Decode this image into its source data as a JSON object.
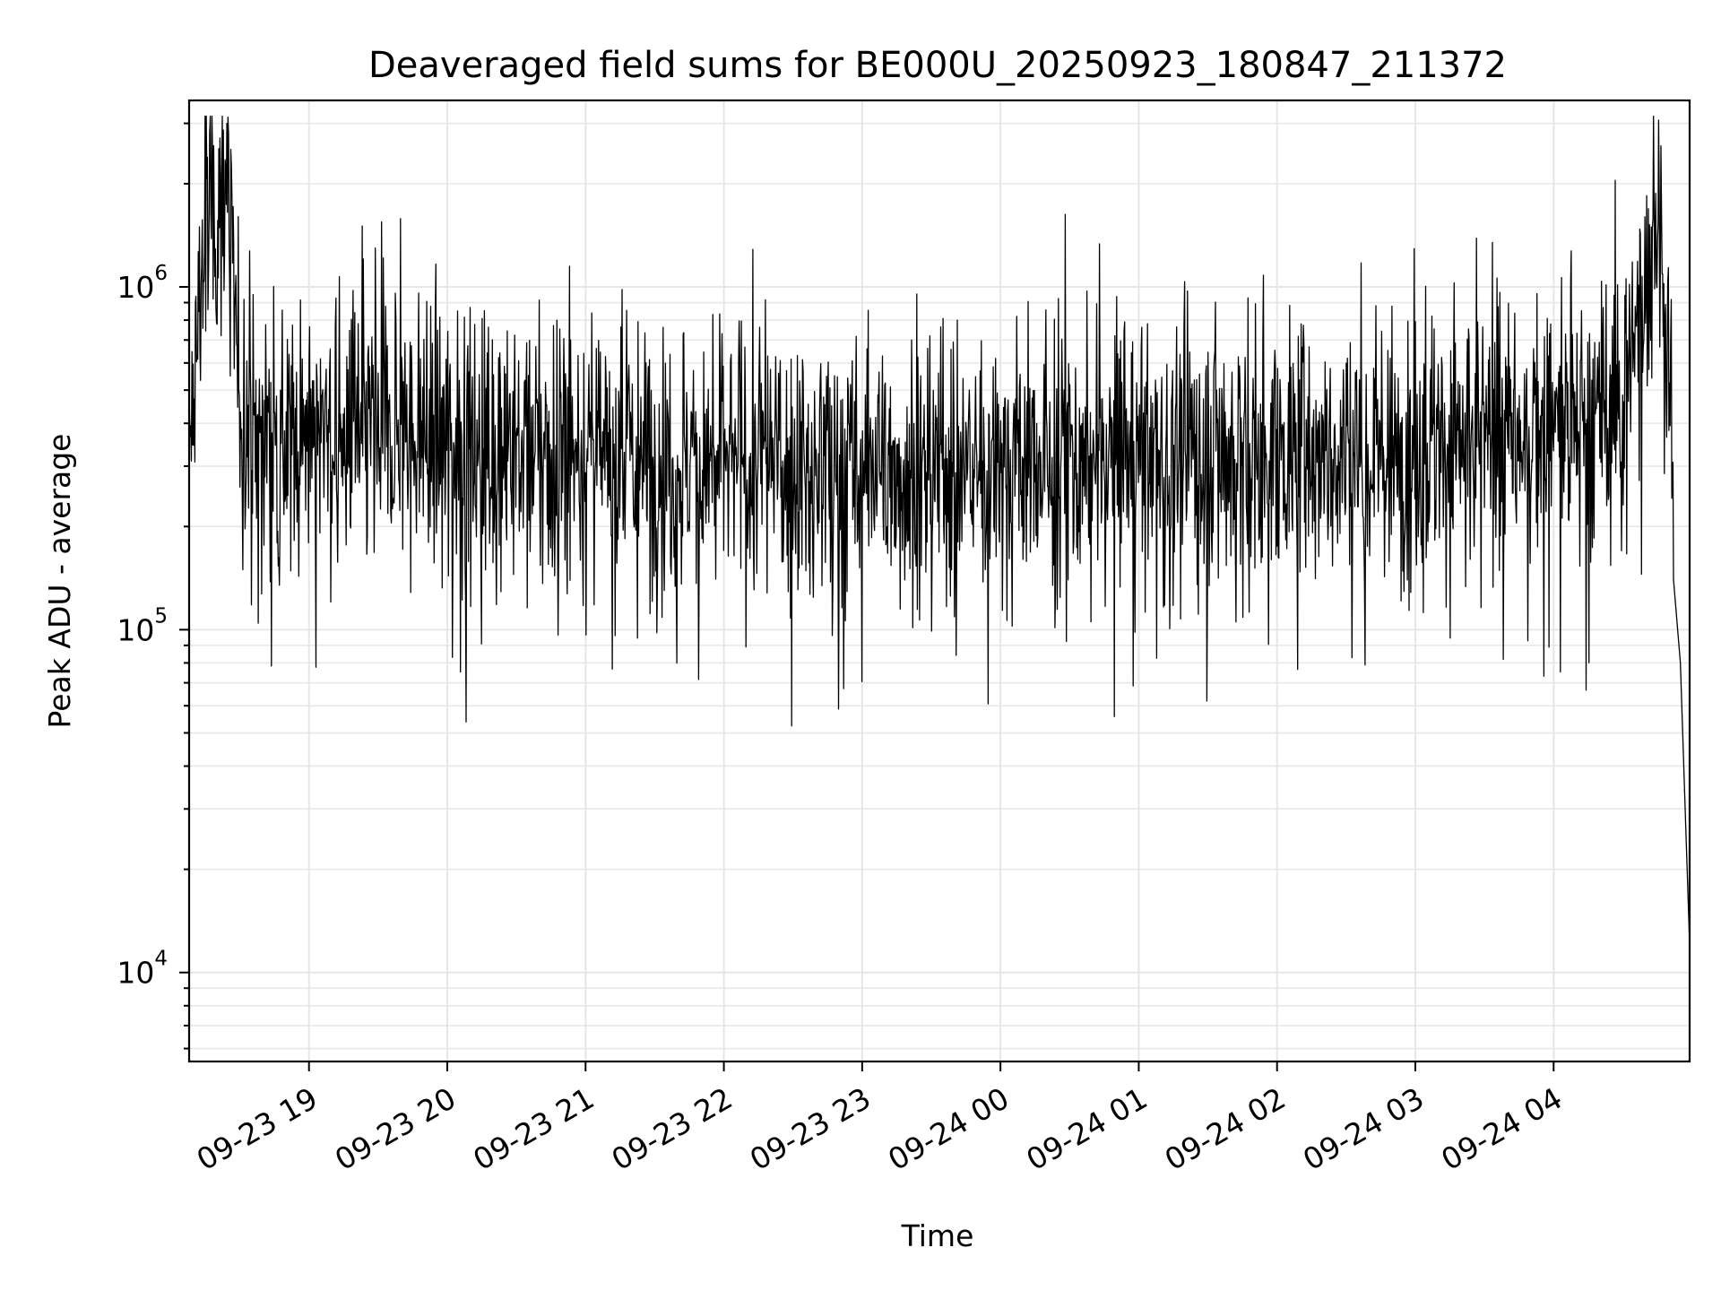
{
  "chart_data": {
    "type": "line",
    "title": "Deaveraged field sums for BE000U_20250923_180847_211372",
    "xlabel": "Time",
    "ylabel": "Peak ADU - average",
    "y_scale": "log",
    "ylim": [
      5500,
      3500000
    ],
    "xlim": [
      "09-23 18:08",
      "09-24 04:59"
    ],
    "grid": true,
    "line_color": "#000000",
    "x_ticks": [
      "09-23 19",
      "09-23 20",
      "09-23 21",
      "09-23 22",
      "09-23 23",
      "09-24 00",
      "09-24 01",
      "09-24 02",
      "09-24 03",
      "09-24 04"
    ],
    "y_ticks": [
      {
        "value": 10000,
        "base": "10",
        "exp": "4"
      },
      {
        "value": 100000,
        "base": "10",
        "exp": "5"
      },
      {
        "value": 1000000,
        "base": "10",
        "exp": "6"
      }
    ],
    "series": [
      {
        "x": [
          "09-23 18:08",
          "09-23 18:12",
          "09-23 18:16",
          "09-23 18:20",
          "09-23 18:24",
          "09-23 18:28",
          "09-23 18:32",
          "09-23 18:40",
          "09-23 18:50",
          "09-23 19:00",
          "09-23 19:15",
          "09-23 19:30",
          "09-23 19:45",
          "09-23 20:00",
          "09-23 20:30",
          "09-23 21:00",
          "09-23 21:30",
          "09-23 22:00",
          "09-23 22:30",
          "09-23 23:00",
          "09-23 23:30",
          "09-24 00:00",
          "09-24 00:30",
          "09-24 01:00",
          "09-24 01:30",
          "09-24 02:00",
          "09-24 02:30",
          "09-24 03:00",
          "09-24 03:30",
          "09-24 04:00",
          "09-24 04:20",
          "09-24 04:35",
          "09-24 04:45",
          "09-24 04:50",
          "09-24 04:55",
          "09-24 04:59"
        ],
        "y": [
          260000,
          900000,
          1700000,
          1500000,
          2500000,
          700000,
          400000,
          380000,
          360000,
          380000,
          350000,
          380000,
          370000,
          360000,
          340000,
          330000,
          300000,
          310000,
          300000,
          290000,
          295000,
          300000,
          310000,
          330000,
          320000,
          330000,
          330000,
          340000,
          350000,
          380000,
          420000,
          650000,
          1700000,
          500000,
          80000,
          12000
        ]
      }
    ]
  }
}
